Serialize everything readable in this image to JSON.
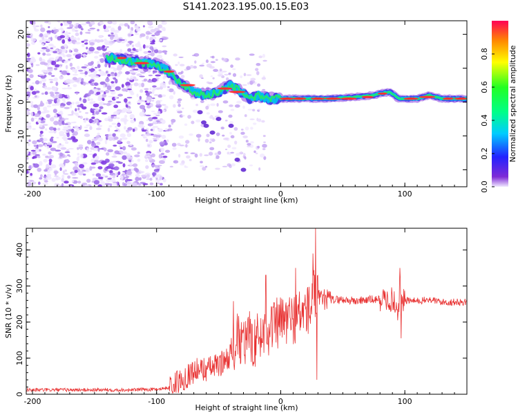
{
  "title": "S141.2023.195.00.15.E03",
  "chart_data": [
    {
      "type": "heatmap",
      "xlabel": "Height of straight line (km)",
      "ylabel": "Frequency (Hz)",
      "xlim": [
        -205,
        150
      ],
      "ylim": [
        -25,
        24
      ],
      "xticks": [
        -200,
        -100,
        0,
        100
      ],
      "yticks": [
        -20,
        -10,
        0,
        10,
        20
      ],
      "colorbar": {
        "label": "Normalized spectral amplitude",
        "range": [
          0,
          1
        ],
        "ticks": [
          0.0,
          0.2,
          0.4,
          0.6,
          0.8
        ]
      },
      "ridge": {
        "description": "dominant frequency ridge",
        "x": [
          -135,
          -120,
          -110,
          -100,
          -92,
          -85,
          -78,
          -70,
          -60,
          -50,
          -40,
          -32,
          -25,
          -18,
          -10,
          0,
          20,
          40,
          60,
          75,
          80,
          88,
          95,
          110,
          120,
          130,
          150
        ],
        "y": [
          13,
          12,
          11.5,
          11,
          9.5,
          7,
          5,
          3,
          2,
          3,
          5,
          3,
          1,
          2,
          1,
          1,
          1,
          1,
          1.5,
          2,
          2.5,
          3,
          1,
          1,
          2,
          1,
          1
        ]
      },
      "colors": {
        "peak": "#ff2a2a",
        "ridge": "#00ff66",
        "noise": "#6b2bd9"
      }
    },
    {
      "type": "line",
      "xlabel": "Height of straight line (km)",
      "ylabel": "SNR (10 * v/v)",
      "xlim": [
        -205,
        150
      ],
      "ylim": [
        0,
        460
      ],
      "xticks": [
        -200,
        -100,
        0,
        100
      ],
      "yticks": [
        0,
        100,
        200,
        300,
        400
      ],
      "series": [
        {
          "color": "#e83030",
          "x": [
            -205,
            -180,
            -150,
            -120,
            -100,
            -90,
            -80,
            -70,
            -60,
            -50,
            -40,
            -35,
            -30,
            -20,
            -10,
            0,
            10,
            15,
            20,
            25,
            27,
            28,
            30,
            35,
            40,
            50,
            60,
            70,
            80,
            90,
            95,
            96,
            97,
            100,
            110,
            120,
            130,
            140,
            150
          ],
          "y": [
            12,
            12,
            12,
            12,
            14,
            18,
            40,
            65,
            70,
            80,
            110,
            150,
            140,
            150,
            180,
            200,
            210,
            220,
            230,
            240,
            300,
            255,
            260,
            262,
            262,
            262,
            258,
            262,
            262,
            262,
            230,
            330,
            250,
            260,
            258,
            262,
            255,
            255,
            255
          ],
          "extremes": {
            "x": [
              -38,
              -25,
              -12,
              12,
              26,
              28,
              29,
              96,
              97
            ],
            "y": [
              258,
              230,
              330,
              350,
              390,
              460,
              40,
              350,
              155
            ]
          }
        }
      ]
    }
  ]
}
